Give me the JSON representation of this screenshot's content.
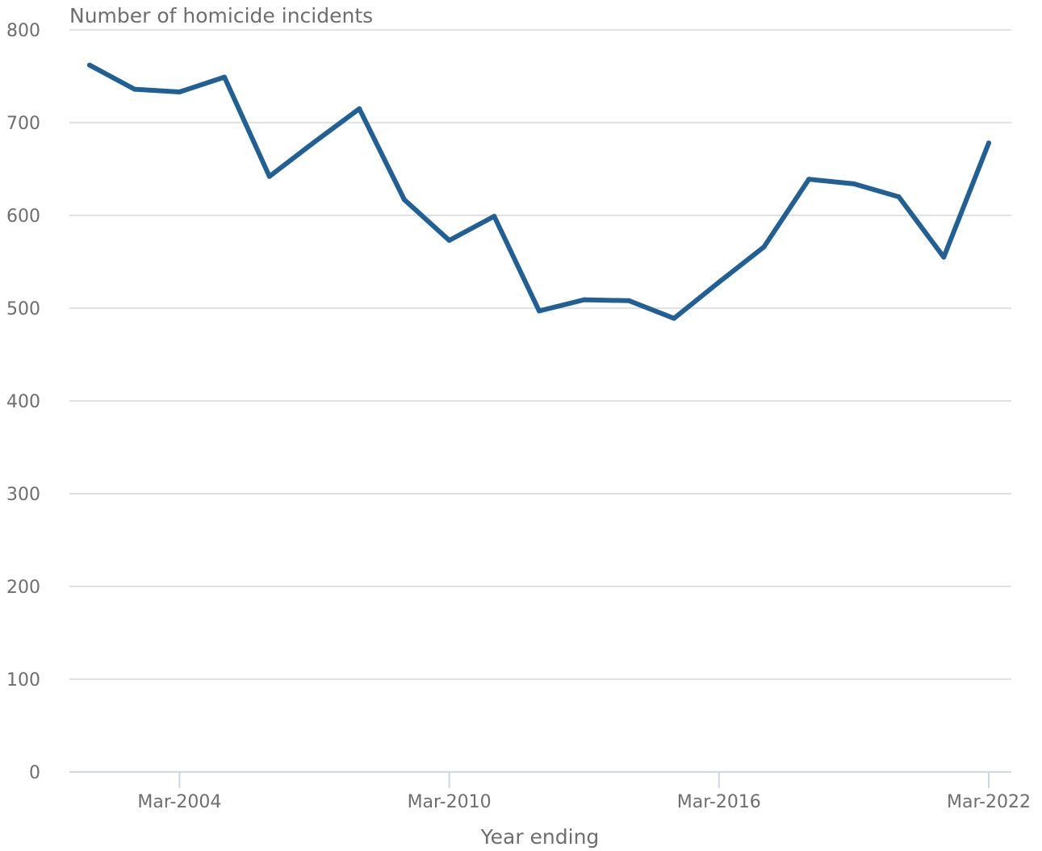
{
  "chart_data": {
    "type": "line",
    "title": "Number of homicide incidents",
    "xlabel": "Year ending",
    "ylabel": "",
    "ylim": [
      0,
      800
    ],
    "yticks": [
      0,
      100,
      200,
      300,
      400,
      500,
      600,
      700,
      800
    ],
    "xtick_labels": [
      "Mar-2004",
      "Mar-2010",
      "Mar-2016",
      "Mar-2022"
    ],
    "grid": true,
    "series_color": "#206095",
    "x": [
      "Mar-2002",
      "Mar-2003",
      "Mar-2004",
      "Mar-2005",
      "Mar-2006",
      "Mar-2007",
      "Mar-2008",
      "Mar-2009",
      "Mar-2010",
      "Mar-2011",
      "Mar-2012",
      "Mar-2013",
      "Mar-2014",
      "Mar-2015",
      "Mar-2016",
      "Mar-2017",
      "Mar-2018",
      "Mar-2019",
      "Mar-2020",
      "Mar-2021",
      "Mar-2022"
    ],
    "values": [
      762,
      736,
      733,
      749,
      642,
      679,
      715,
      617,
      573,
      599,
      497,
      509,
      508,
      489,
      528,
      566,
      639,
      634,
      620,
      555,
      678
    ]
  }
}
